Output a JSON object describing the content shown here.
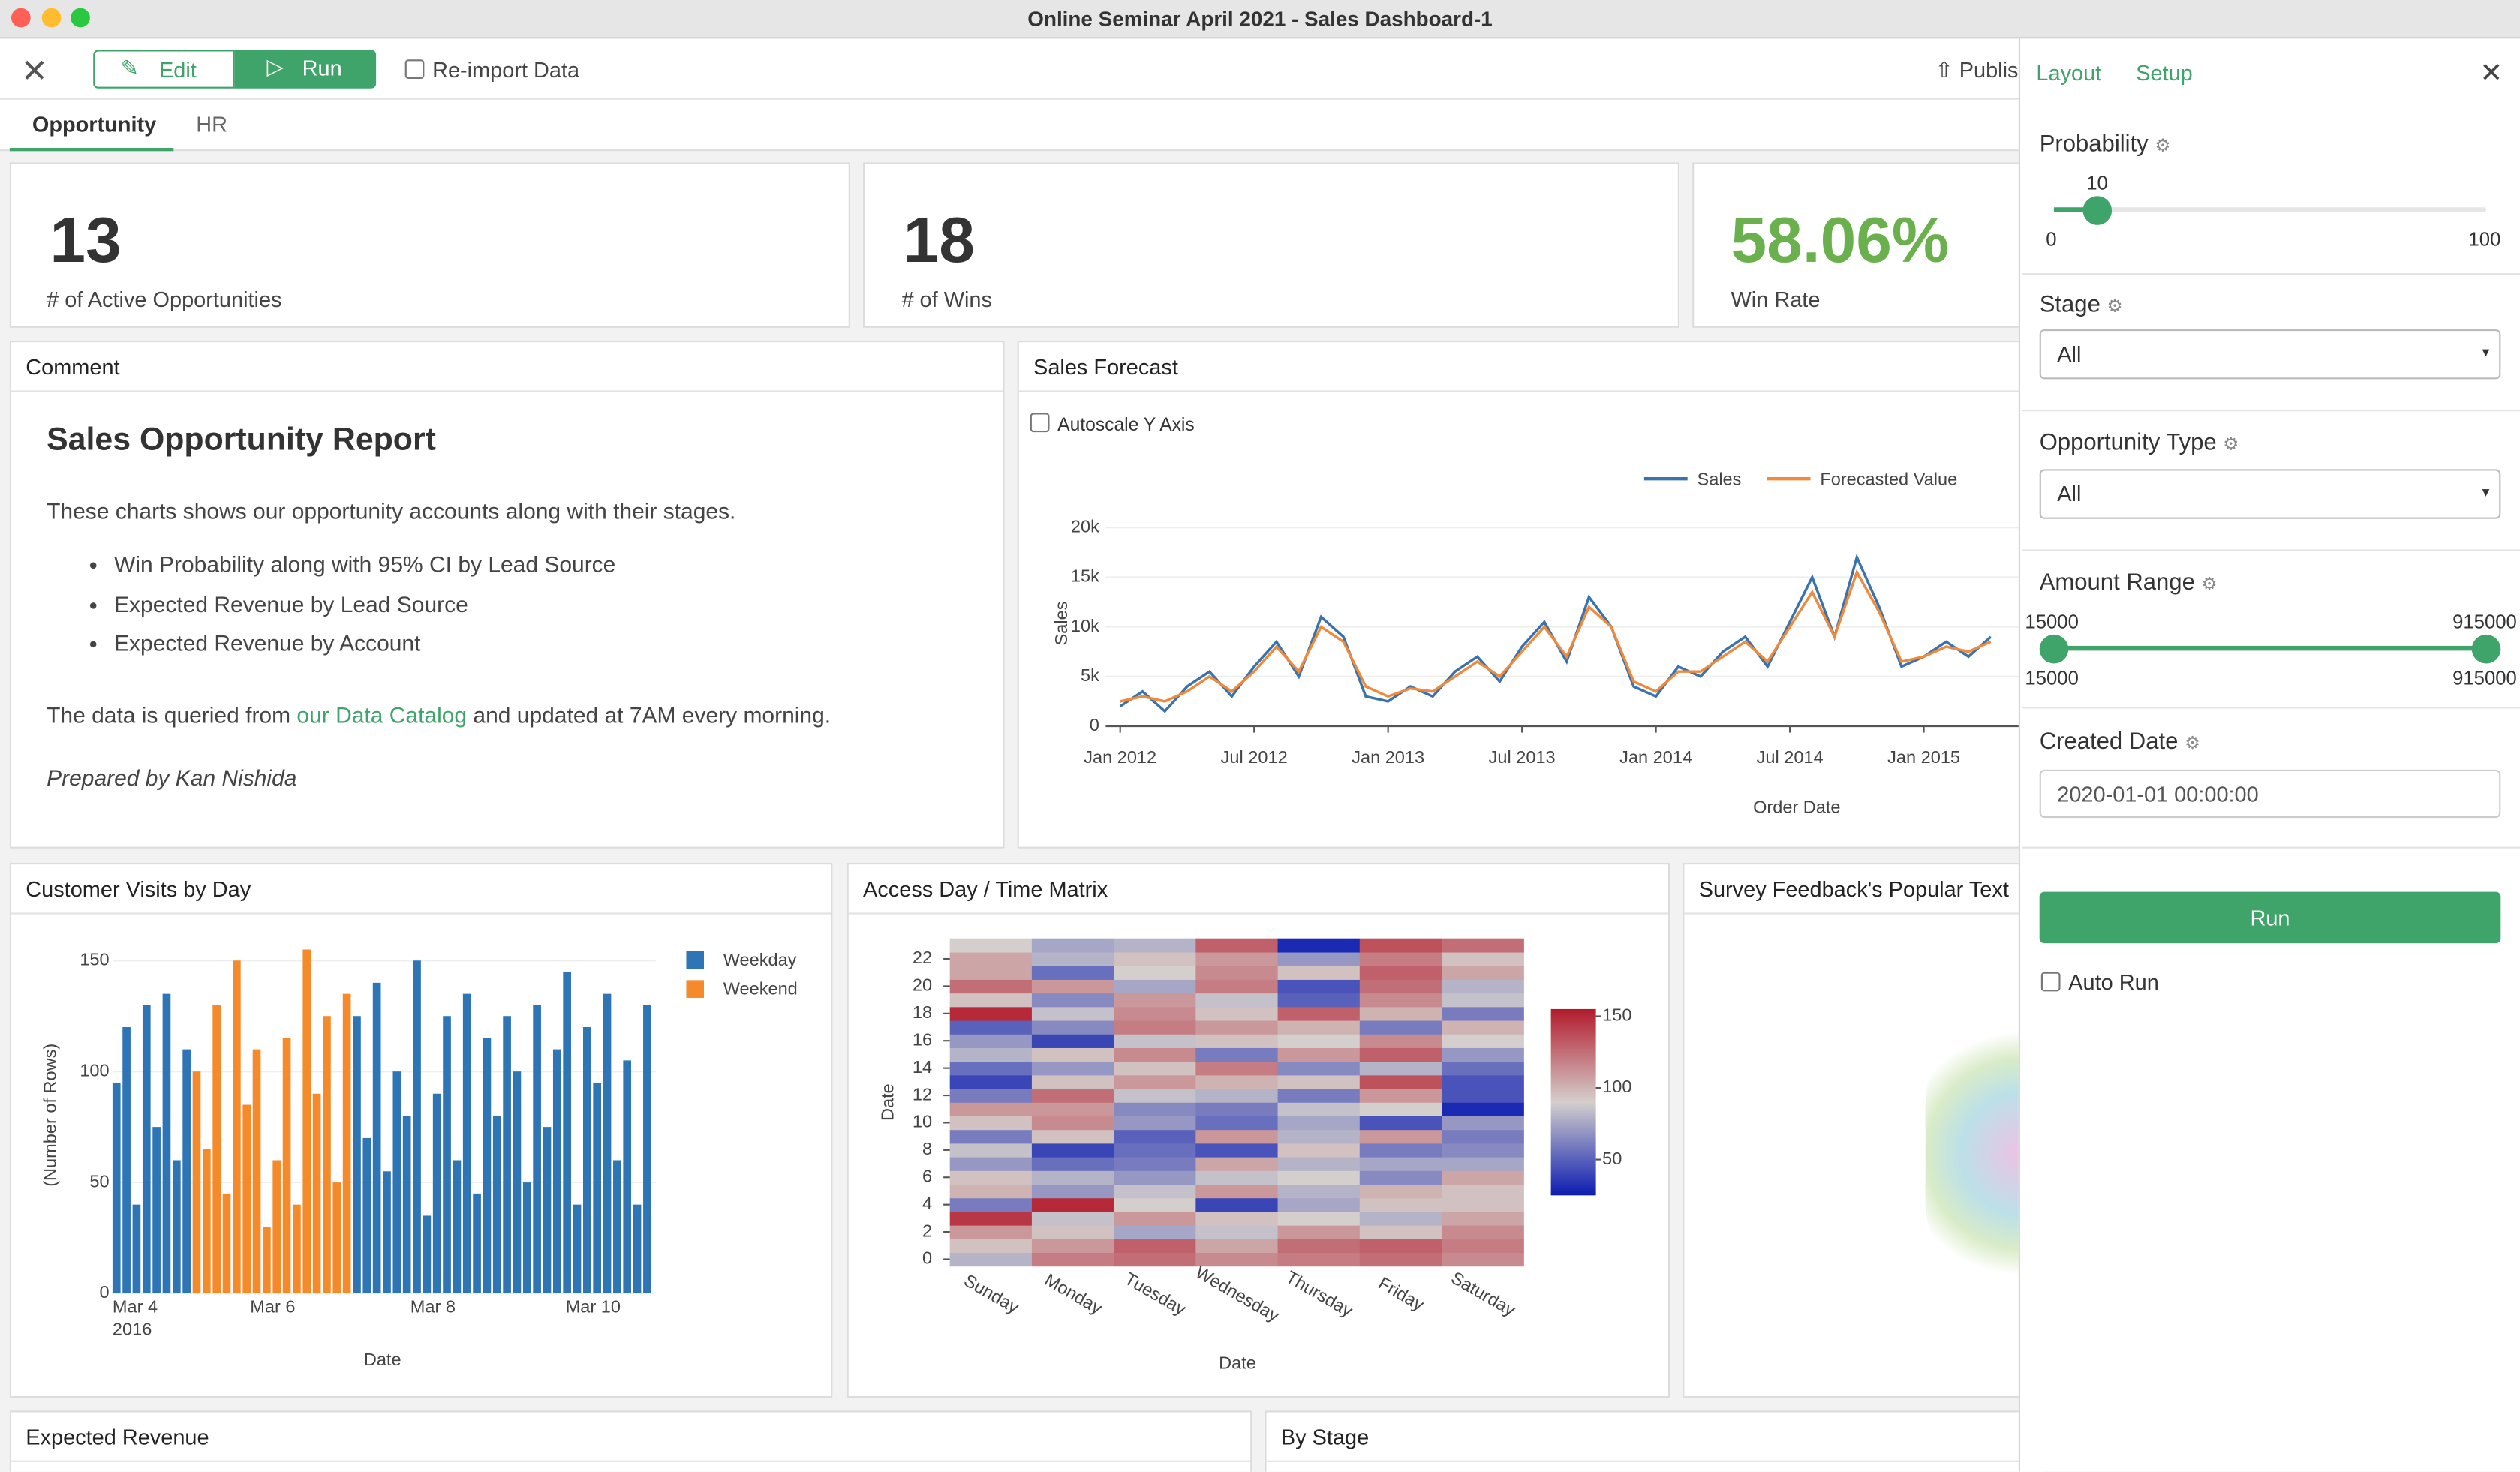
{
  "window": {
    "title": "Online Seminar April 2021 - Sales Dashboard-1"
  },
  "toolbar": {
    "edit": "Edit",
    "run": "Run",
    "reimport": "Re-import Data",
    "publish": "Publish"
  },
  "tabs": [
    "Opportunity",
    "HR"
  ],
  "kpis": [
    {
      "value": "13",
      "label": "# of Active Opportunities"
    },
    {
      "value": "18",
      "label": "# of Wins"
    },
    {
      "value": "58.06%",
      "label": "Win Rate"
    }
  ],
  "comment": {
    "header": "Comment",
    "title": "Sales Opportunity Report",
    "intro": "These charts shows our opportunity accounts along with their stages.",
    "bullets": [
      "Win Probability along with 95% CI by Lead Source",
      "Expected Revenue by Lead Source",
      "Expected Revenue by Account"
    ],
    "source_before": "The data is queried from ",
    "source_link": "our Data Catalog",
    "source_after": " and updated at 7AM every morning.",
    "author": "Prepared by Kan Nishida"
  },
  "panels": {
    "wordcloud": "Survey Feedback's Popular Text",
    "expected_revenue": "Expected Revenue",
    "by_stage": "By Stage"
  },
  "chart_data": [
    {
      "type": "line",
      "title": "Sales Forecast",
      "checkbox": "Autoscale Y Axis",
      "xlabel": "Order Date",
      "ylabel": "Sales",
      "grid": true,
      "x": [
        "2012-01",
        "2012-02",
        "2012-03",
        "2012-04",
        "2012-05",
        "2012-06",
        "2012-07",
        "2012-08",
        "2012-09",
        "2012-10",
        "2012-11",
        "2012-12",
        "2013-01",
        "2013-02",
        "2013-03",
        "2013-04",
        "2013-05",
        "2013-06",
        "2013-07",
        "2013-08",
        "2013-09",
        "2013-10",
        "2013-11",
        "2013-12",
        "2014-01",
        "2014-02",
        "2014-03",
        "2014-04",
        "2014-05",
        "2014-06",
        "2014-07",
        "2014-08",
        "2014-09",
        "2014-10",
        "2014-11",
        "2014-12",
        "2015-01",
        "2015-02",
        "2015-03",
        "2015-04"
      ],
      "xticks": [
        {
          "value": "2012-01",
          "label": "Jan 2012"
        },
        {
          "value": "2012-07",
          "label": "Jul 2012"
        },
        {
          "value": "2013-01",
          "label": "Jan 2013"
        },
        {
          "value": "2013-07",
          "label": "Jul 2013"
        },
        {
          "value": "2014-01",
          "label": "Jan 2014"
        },
        {
          "value": "2014-07",
          "label": "Jul 2014"
        },
        {
          "value": "2015-01",
          "label": "Jan 2015"
        }
      ],
      "ylim": [
        0,
        22000
      ],
      "yticks": [
        0,
        {
          "value": 5000,
          "label": "5k"
        },
        {
          "value": 10000,
          "label": "10k"
        },
        {
          "value": 15000,
          "label": "15k"
        },
        {
          "value": 20000,
          "label": "20k"
        }
      ],
      "series": [
        {
          "name": "Sales",
          "color": "#3a72ad",
          "values": [
            2000,
            3500,
            1500,
            4000,
            5500,
            3000,
            6000,
            8500,
            5000,
            11000,
            9000,
            3000,
            2500,
            4000,
            3000,
            5500,
            7000,
            4500,
            8000,
            10500,
            6500,
            13000,
            10000,
            4000,
            3000,
            6000,
            5000,
            7500,
            9000,
            6000,
            10500,
            15000,
            9000,
            17000,
            12000,
            6000,
            7000,
            8500,
            7000,
            9000
          ]
        },
        {
          "name": "Forecasted Value",
          "color": "#f08a3a",
          "values": [
            2500,
            3000,
            2500,
            3500,
            5000,
            3500,
            5500,
            8000,
            5500,
            10000,
            8500,
            4000,
            3000,
            3800,
            3500,
            5000,
            6500,
            5000,
            7500,
            10000,
            7000,
            12000,
            10000,
            4500,
            3500,
            5500,
            5500,
            7000,
            8500,
            6500,
            10000,
            13500,
            9000,
            15500,
            11500,
            6500,
            7000,
            8000,
            7500,
            8500
          ]
        }
      ]
    },
    {
      "type": "bar",
      "title": "Customer Visits by Day",
      "xlabel": "Date",
      "ylabel": "(Number of Rows)",
      "year_label": "2016",
      "grid": true,
      "categories": [
        "Mar 4",
        null,
        null,
        null,
        null,
        null,
        null,
        null,
        null,
        null,
        null,
        null,
        null,
        null,
        null,
        null,
        "Mar 6",
        null,
        null,
        null,
        null,
        null,
        null,
        null,
        null,
        null,
        null,
        null,
        null,
        null,
        null,
        null,
        "Mar 8",
        null,
        null,
        null,
        null,
        null,
        null,
        null,
        null,
        null,
        null,
        null,
        null,
        null,
        null,
        null,
        "Mar 10",
        null,
        null,
        null,
        null,
        null
      ],
      "ylim": [
        0,
        160
      ],
      "yticks": [
        0,
        50,
        100,
        150
      ],
      "series": [
        {
          "name": "Weekday",
          "color": "#2e75b6",
          "values": [
            95,
            120,
            40,
            130,
            75,
            135,
            60,
            110,
            null,
            null,
            null,
            null,
            null,
            null,
            null,
            null,
            null,
            null,
            null,
            null,
            null,
            null,
            null,
            null,
            125,
            70,
            140,
            55,
            100,
            80,
            150,
            35,
            90,
            125,
            60,
            135,
            45,
            115,
            80,
            125,
            100,
            50,
            130,
            75,
            110,
            145,
            40,
            120,
            95,
            135,
            60,
            105,
            40,
            130
          ]
        },
        {
          "name": "Weekend",
          "color": "#f48a2a",
          "values": [
            null,
            null,
            null,
            null,
            null,
            null,
            null,
            null,
            100,
            65,
            130,
            45,
            150,
            85,
            110,
            30,
            60,
            115,
            40,
            155,
            90,
            125,
            50,
            135,
            null,
            null,
            null,
            null,
            null,
            null,
            null,
            null,
            null,
            null,
            null,
            null,
            null,
            null,
            null,
            null,
            null,
            null,
            null,
            null,
            null,
            null,
            null,
            null,
            null,
            null,
            null,
            null,
            null,
            null
          ]
        }
      ]
    },
    {
      "type": "heatmap",
      "title": "Access Day / Time Matrix",
      "xlabel": "Date",
      "ylabel": "Date",
      "x": [
        "Sunday",
        "Monday",
        "Tuesday",
        "Wednesday",
        "Thursday",
        "Friday",
        "Saturday"
      ],
      "y": [
        0,
        1,
        2,
        3,
        4,
        5,
        6,
        7,
        8,
        9,
        10,
        11,
        12,
        13,
        14,
        15,
        16,
        17,
        18,
        19,
        20,
        21,
        22,
        23
      ],
      "yticks": [
        0,
        2,
        4,
        6,
        8,
        10,
        12,
        14,
        16,
        18,
        20,
        22
      ],
      "zlim": [
        25,
        155
      ],
      "zticks": [
        50,
        100,
        150
      ],
      "colorscale": [
        "#0c1cb0",
        "#d4cfcc",
        "#b31b2c"
      ],
      "values": [
        [
          80,
          120,
          125,
          115,
          120,
          125,
          115
        ],
        [
          95,
          110,
          130,
          105,
          125,
          130,
          120
        ],
        [
          110,
          95,
          75,
          85,
          110,
          95,
          115
        ],
        [
          145,
          85,
          110,
          95,
          90,
          80,
          105
        ],
        [
          60,
          150,
          90,
          40,
          75,
          95,
          95
        ],
        [
          100,
          70,
          85,
          110,
          80,
          100,
          95
        ],
        [
          95,
          80,
          70,
          85,
          90,
          65,
          105
        ],
        [
          70,
          55,
          60,
          105,
          80,
          75,
          75
        ],
        [
          85,
          40,
          55,
          45,
          95,
          60,
          65
        ],
        [
          60,
          95,
          50,
          110,
          80,
          110,
          60
        ],
        [
          95,
          115,
          70,
          55,
          75,
          45,
          70
        ],
        [
          110,
          110,
          65,
          60,
          85,
          90,
          30
        ],
        [
          60,
          125,
          85,
          80,
          60,
          110,
          45
        ],
        [
          40,
          95,
          110,
          100,
          95,
          135,
          45
        ],
        [
          55,
          70,
          95,
          120,
          65,
          80,
          55
        ],
        [
          80,
          95,
          115,
          60,
          110,
          130,
          70
        ],
        [
          70,
          40,
          85,
          95,
          90,
          115,
          90
        ],
        [
          50,
          65,
          120,
          110,
          100,
          60,
          100
        ],
        [
          150,
          85,
          115,
          95,
          130,
          100,
          60
        ],
        [
          95,
          65,
          110,
          85,
          50,
          115,
          85
        ],
        [
          125,
          110,
          75,
          120,
          45,
          125,
          80
        ],
        [
          105,
          55,
          90,
          115,
          95,
          130,
          105
        ],
        [
          105,
          80,
          95,
          110,
          70,
          120,
          95
        ],
        [
          90,
          75,
          80,
          130,
          30,
          135,
          125
        ]
      ]
    }
  ],
  "sidebar": {
    "tabs": [
      "Layout",
      "Setup"
    ],
    "probability": {
      "label": "Probability",
      "value": 10,
      "min": 0,
      "max": 100
    },
    "stage": {
      "label": "Stage",
      "value": "All"
    },
    "opportunity_type": {
      "label": "Opportunity Type",
      "value": "All"
    },
    "amount_range": {
      "label": "Amount Range",
      "low": 15000,
      "high": 915000,
      "min": 15000,
      "max": 915000
    },
    "created_date": {
      "label": "Created Date",
      "value": "2020-01-01 00:00:00"
    },
    "run": "Run",
    "auto_run": "Auto Run"
  }
}
